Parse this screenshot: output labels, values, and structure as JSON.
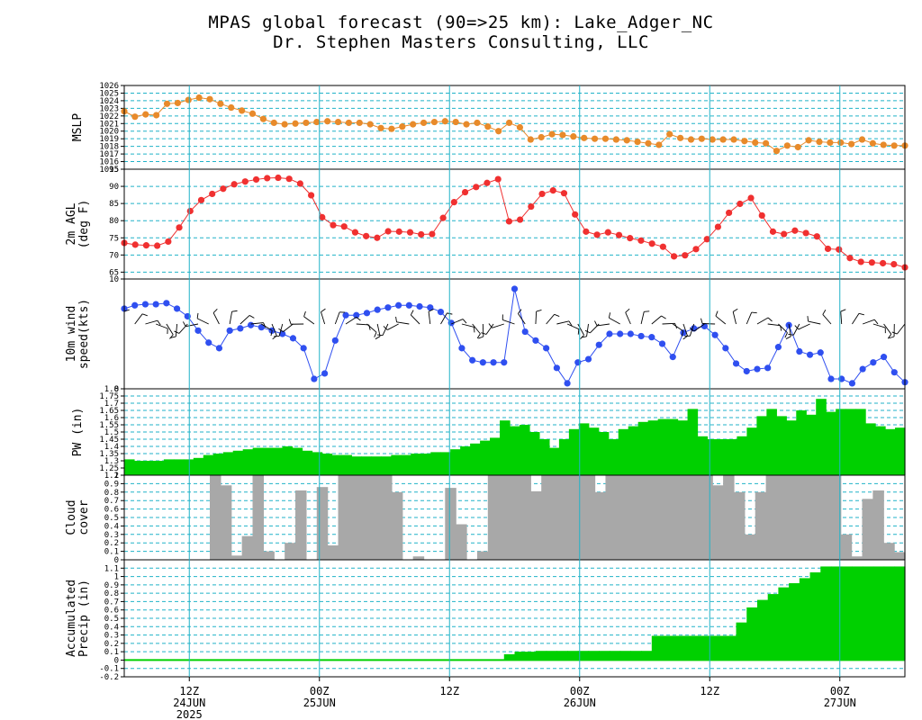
{
  "title": {
    "line1": "MPAS global forecast (90=>25 km): Lake_Adger_NC",
    "line2": "Dr. Stephen Masters Consulting, LLC"
  },
  "colors": {
    "grid": "#20b2c8",
    "mslp": "#e88a2a",
    "temp": "#f03030",
    "wind": "#2f4ff0",
    "pw": "#00d000",
    "cloud": "#a8a8a8",
    "precip": "#00d000"
  },
  "x_axis": {
    "ticks": [
      {
        "label": "12Z",
        "sub": "24JUN",
        "sub2": "2025",
        "i": 6
      },
      {
        "label": "00Z",
        "sub": "25JUN",
        "sub2": "",
        "i": 18
      },
      {
        "label": "12Z",
        "sub": "",
        "sub2": "",
        "i": 30
      },
      {
        "label": "00Z",
        "sub": "26JUN",
        "sub2": "",
        "i": 42
      },
      {
        "label": "12Z",
        "sub": "",
        "sub2": "",
        "i": 54
      },
      {
        "label": "00Z",
        "sub": "27JUN",
        "sub2": "",
        "i": 66
      }
    ]
  },
  "chart_data": [
    {
      "type": "line",
      "panel": "mslp",
      "ylabel": [
        "MSLP"
      ],
      "ylim": [
        1015,
        1026
      ],
      "yticks": [
        "1015",
        "1016",
        "1017",
        "1018",
        "1019",
        "1020",
        "1021",
        "1022",
        "1023",
        "1024",
        "1025",
        "1026"
      ],
      "values": [
        1022.6,
        1021.9,
        1022.2,
        1022.1,
        1023.6,
        1023.7,
        1024.1,
        1024.4,
        1024.2,
        1023.6,
        1023.1,
        1022.7,
        1022.3,
        1021.6,
        1021.1,
        1020.9,
        1021,
        1021.1,
        1021.2,
        1021.3,
        1021.2,
        1021.1,
        1021.1,
        1020.9,
        1020.4,
        1020.3,
        1020.6,
        1020.9,
        1021.1,
        1021.2,
        1021.3,
        1021.2,
        1020.9,
        1021.1,
        1020.6,
        1020,
        1021.1,
        1020.5,
        1018.9,
        1019.2,
        1019.6,
        1019.5,
        1019.3,
        1019.1,
        1019,
        1019,
        1018.9,
        1018.8,
        1018.6,
        1018.4,
        1018.2,
        1019.6,
        1019.1,
        1018.9,
        1019,
        1018.9,
        1018.9,
        1018.9,
        1018.7,
        1018.5,
        1018.4,
        1017.4,
        1018.1,
        1017.9,
        1018.8,
        1018.6,
        1018.5,
        1018.5,
        1018.3,
        1018.9,
        1018.4,
        1018.2,
        1018.1,
        1018.1
      ]
    },
    {
      "type": "line",
      "panel": "temp",
      "ylabel": [
        "2m AGL",
        "(deg F)"
      ],
      "ylim": [
        63,
        95
      ],
      "yticks": [
        "65",
        "70",
        "75",
        "80",
        "85",
        "90",
        "95"
      ],
      "values": [
        73.5,
        73,
        72.8,
        72.7,
        73.9,
        78,
        82.8,
        86,
        87.8,
        89.3,
        90.6,
        91.4,
        92,
        92.4,
        92.5,
        92.2,
        90.8,
        87.4,
        81,
        78.7,
        78.3,
        76.6,
        75.5,
        75,
        76.9,
        76.8,
        76.6,
        76,
        76.1,
        80.8,
        85.4,
        88.3,
        89.8,
        91,
        92.1,
        79.8,
        80.3,
        84.1,
        87.8,
        88.8,
        88,
        81.8,
        76.8,
        75.9,
        76.6,
        75.8,
        74.9,
        74.2,
        73.3,
        72.4,
        69.6,
        69.9,
        71.7,
        74.6,
        78.2,
        82.3,
        84.9,
        86.6,
        81.5,
        76.8,
        76.1,
        77.1,
        76.4,
        75.4,
        71.8,
        71.6,
        69.1,
        68,
        67.8,
        67.6,
        67.3,
        66.4
      ]
    },
    {
      "type": "line",
      "panel": "wind",
      "ylabel": [
        "10m wind",
        "speed(kts)"
      ],
      "ylim": [
        0,
        10
      ],
      "yticks": [
        "0",
        "10"
      ],
      "values": [
        7.3,
        7.6,
        7.7,
        7.7,
        7.8,
        7.3,
        6.6,
        5.3,
        4.2,
        3.7,
        5.3,
        5.5,
        5.8,
        5.6,
        5.3,
        5,
        4.6,
        3.7,
        0.9,
        1.4,
        4.4,
        6.7,
        6.7,
        6.9,
        7.2,
        7.4,
        7.6,
        7.6,
        7.5,
        7.4,
        7,
        6,
        3.7,
        2.6,
        2.4,
        2.4,
        2.4,
        9.1,
        5.2,
        4.4,
        3.7,
        1.9,
        0.5,
        2.4,
        2.7,
        4,
        5,
        5,
        5,
        4.8,
        4.7,
        4.1,
        2.9,
        5.1,
        5.5,
        5.7,
        4.9,
        3.7,
        2.3,
        1.6,
        1.8,
        1.9,
        3.8,
        5.8,
        3.4,
        3.1,
        3.3,
        0.9,
        0.9,
        0.5,
        1.8,
        2.4,
        2.9,
        1.5,
        0.6
      ],
      "barbs": true
    },
    {
      "type": "bar",
      "panel": "pw",
      "ylabel": [
        "PW (in)"
      ],
      "ylim": [
        1.2,
        1.8
      ],
      "yticks": [
        "1.2",
        "1.25",
        "1.3",
        "1.35",
        "1.4",
        "1.45",
        "1.5",
        "1.55",
        "1.6",
        "1.65",
        "1.7",
        "1.75",
        "1.8"
      ],
      "values": [
        1.31,
        1.3,
        1.3,
        1.3,
        1.31,
        1.31,
        1.31,
        1.32,
        1.34,
        1.35,
        1.36,
        1.37,
        1.38,
        1.39,
        1.39,
        1.39,
        1.4,
        1.39,
        1.37,
        1.36,
        1.35,
        1.34,
        1.34,
        1.33,
        1.33,
        1.33,
        1.33,
        1.34,
        1.34,
        1.35,
        1.35,
        1.36,
        1.36,
        1.38,
        1.4,
        1.42,
        1.44,
        1.46,
        1.58,
        1.54,
        1.55,
        1.5,
        1.45,
        1.39,
        1.45,
        1.52,
        1.56,
        1.53,
        1.5,
        1.45,
        1.52,
        1.54,
        1.57,
        1.58,
        1.59,
        1.59,
        1.58,
        1.66,
        1.47,
        1.45,
        1.45,
        1.45,
        1.47,
        1.53,
        1.61,
        1.66,
        1.61,
        1.58,
        1.65,
        1.62,
        1.73,
        1.64,
        1.66,
        1.66,
        1.66,
        1.56,
        1.54,
        1.52,
        1.53
      ]
    },
    {
      "type": "bar",
      "panel": "cloud",
      "ylabel": [
        "Cloud",
        "cover"
      ],
      "ylim": [
        0,
        1
      ],
      "yticks": [
        "0",
        "0.1",
        "0.2",
        "0.3",
        "0.4",
        "0.5",
        "0.6",
        "0.7",
        "0.8",
        "0.9",
        "1"
      ],
      "values": [
        0,
        0,
        0,
        0,
        0,
        0,
        0,
        0,
        1,
        0.88,
        0.05,
        0.28,
        1,
        0.1,
        0,
        0.2,
        0.82,
        0,
        0.86,
        0.17,
        1,
        1,
        1,
        1,
        1,
        0.8,
        0,
        0.04,
        0,
        0,
        0.85,
        0.42,
        0,
        0.1,
        1,
        1,
        1,
        1,
        0.81,
        1,
        1,
        1,
        1,
        1,
        0.8,
        1,
        1,
        1,
        1,
        1,
        1,
        1,
        1,
        1,
        1,
        0.88,
        1,
        0.8,
        0.3,
        0.8,
        1,
        1,
        1,
        1,
        1,
        1,
        1,
        0.3,
        0.04,
        0.72,
        0.82,
        0.2,
        0.09
      ]
    },
    {
      "type": "bar",
      "panel": "precip",
      "ylabel": [
        "Accumulated",
        "Precip (in)"
      ],
      "ylim": [
        -0.2,
        1.2
      ],
      "yticks": [
        "-0.2",
        "-0.1",
        "0",
        "0.1",
        "0.2",
        "0.3",
        "0.4",
        "0.5",
        "0.6",
        "0.7",
        "0.8",
        "0.9",
        "1",
        "1.1"
      ],
      "values": [
        0,
        0,
        0,
        0,
        0,
        0,
        0,
        0,
        0,
        0,
        0,
        0,
        0,
        0,
        0,
        0,
        0,
        0,
        0,
        0,
        0,
        0,
        0,
        0,
        0,
        0,
        0,
        0,
        0,
        0,
        0,
        0,
        0,
        0,
        0,
        0.01,
        0.07,
        0.1,
        0.1,
        0.11,
        0.11,
        0.11,
        0.11,
        0.11,
        0.11,
        0.11,
        0.11,
        0.11,
        0.11,
        0.11,
        0.29,
        0.29,
        0.29,
        0.29,
        0.29,
        0.29,
        0.29,
        0.29,
        0.45,
        0.63,
        0.72,
        0.79,
        0.87,
        0.92,
        0.98,
        1.05,
        1.12,
        1.12,
        1.12,
        1.12,
        1.12,
        1.12,
        1.12,
        1.12
      ]
    }
  ]
}
